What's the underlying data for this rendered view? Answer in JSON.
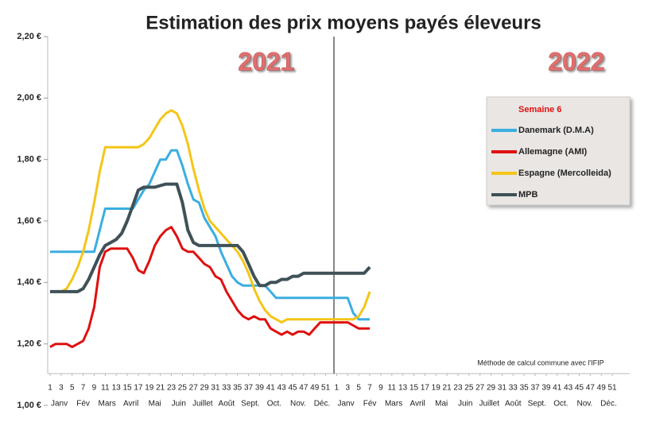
{
  "chart_data": {
    "type": "line",
    "title": "Estimation des prix moyens payés éleveurs",
    "annotations": [
      "2021",
      "2022",
      "Méthode de calcul commune avec l'IFIP"
    ],
    "legend": "upper right",
    "legend_title": "Semaine 6",
    "grid": false,
    "months": [
      "Janv",
      "Fév",
      "Mars",
      "Avril",
      "Mai",
      "Juin",
      "Juillet",
      "Août",
      "Sept.",
      "Oct.",
      "Nov.",
      "Déc."
    ],
    "xlim": [
      1,
      104
    ],
    "ylim": [
      1.0,
      2.2
    ],
    "yticks": [
      {
        "value": 1.0,
        "label": "1,00 €"
      },
      {
        "value": 1.2,
        "label": "1,20 €"
      },
      {
        "value": 1.4,
        "label": "1,40 €"
      },
      {
        "value": 1.6,
        "label": "1,60 €"
      },
      {
        "value": 1.8,
        "label": "1,80 €"
      },
      {
        "value": 2.0,
        "label": "2,00 €"
      },
      {
        "value": 2.2,
        "label": "2,20 €"
      }
    ],
    "xticks": [
      1,
      3,
      5,
      7,
      9,
      11,
      13,
      15,
      17,
      19,
      21,
      23,
      25,
      27,
      29,
      31,
      33,
      35,
      37,
      39,
      41,
      43,
      45,
      47,
      49,
      51,
      {
        "value": 53,
        "label": "1"
      },
      {
        "value": 55,
        "label": "3"
      },
      {
        "value": 57,
        "label": "5"
      },
      {
        "value": 59,
        "label": "7"
      },
      {
        "value": 61,
        "label": "9"
      },
      {
        "value": 63,
        "label": "11"
      },
      {
        "value": 65,
        "label": "13"
      },
      {
        "value": 67,
        "label": "15"
      },
      {
        "value": 69,
        "label": "17"
      },
      {
        "value": 71,
        "label": "19"
      },
      {
        "value": 73,
        "label": "21"
      },
      {
        "value": 75,
        "label": "23"
      },
      {
        "value": 77,
        "label": "25"
      },
      {
        "value": 79,
        "label": "27"
      },
      {
        "value": 81,
        "label": "29"
      },
      {
        "value": 83,
        "label": "31"
      },
      {
        "value": 85,
        "label": "33"
      },
      {
        "value": 87,
        "label": "35"
      },
      {
        "value": 89,
        "label": "37"
      },
      {
        "value": 91,
        "label": "39"
      },
      {
        "value": 93,
        "label": "41"
      },
      {
        "value": 95,
        "label": "43"
      },
      {
        "value": 97,
        "label": "45"
      },
      {
        "value": 99,
        "label": "47"
      },
      {
        "value": 101,
        "label": "49"
      },
      {
        "value": 103,
        "label": "51"
      }
    ],
    "x": [
      1,
      2,
      3,
      4,
      5,
      6,
      7,
      8,
      9,
      10,
      11,
      12,
      13,
      14,
      15,
      16,
      17,
      18,
      19,
      20,
      21,
      22,
      23,
      24,
      25,
      26,
      27,
      28,
      29,
      30,
      31,
      32,
      33,
      34,
      35,
      36,
      37,
      38,
      39,
      40,
      41,
      42,
      43,
      44,
      45,
      46,
      47,
      48,
      49,
      50,
      51,
      52,
      53,
      54,
      55,
      56,
      57,
      58,
      59
    ],
    "series": [
      {
        "name": "Danemark (D.M.A)",
        "color": "#3aaee0",
        "values": [
          1.5,
          1.5,
          1.5,
          1.5,
          1.5,
          1.5,
          1.5,
          1.5,
          1.5,
          1.57,
          1.64,
          1.64,
          1.64,
          1.64,
          1.64,
          1.64,
          1.67,
          1.7,
          1.72,
          1.76,
          1.8,
          1.8,
          1.83,
          1.83,
          1.78,
          1.72,
          1.67,
          1.66,
          1.61,
          1.58,
          1.55,
          1.5,
          1.46,
          1.42,
          1.4,
          1.39,
          1.39,
          1.39,
          1.39,
          1.39,
          1.37,
          1.35,
          1.35,
          1.35,
          1.35,
          1.35,
          1.35,
          1.35,
          1.35,
          1.35,
          1.35,
          1.35,
          1.35,
          1.35,
          1.35,
          1.3,
          1.28,
          1.28,
          1.28
        ]
      },
      {
        "name": "Allemagne (AMI)",
        "color": "#e01010",
        "values": [
          1.19,
          1.2,
          1.2,
          1.2,
          1.19,
          1.2,
          1.21,
          1.25,
          1.32,
          1.45,
          1.5,
          1.51,
          1.51,
          1.51,
          1.51,
          1.48,
          1.44,
          1.43,
          1.47,
          1.52,
          1.55,
          1.57,
          1.58,
          1.55,
          1.51,
          1.5,
          1.5,
          1.48,
          1.46,
          1.45,
          1.42,
          1.41,
          1.37,
          1.34,
          1.31,
          1.29,
          1.28,
          1.29,
          1.28,
          1.28,
          1.25,
          1.24,
          1.23,
          1.24,
          1.23,
          1.24,
          1.24,
          1.23,
          1.25,
          1.27,
          1.27,
          1.27,
          1.27,
          1.27,
          1.27,
          1.26,
          1.25,
          1.25,
          1.25
        ]
      },
      {
        "name": "Espagne (Mercolleida)",
        "color": "#f5c518",
        "values": [
          1.37,
          1.37,
          1.37,
          1.38,
          1.41,
          1.45,
          1.5,
          1.57,
          1.66,
          1.76,
          1.84,
          1.84,
          1.84,
          1.84,
          1.84,
          1.84,
          1.84,
          1.85,
          1.87,
          1.9,
          1.93,
          1.95,
          1.96,
          1.95,
          1.91,
          1.85,
          1.77,
          1.7,
          1.64,
          1.6,
          1.58,
          1.56,
          1.54,
          1.52,
          1.5,
          1.47,
          1.43,
          1.38,
          1.34,
          1.31,
          1.29,
          1.28,
          1.27,
          1.28,
          1.28,
          1.28,
          1.28,
          1.28,
          1.28,
          1.28,
          1.28,
          1.28,
          1.28,
          1.28,
          1.28,
          1.28,
          1.29,
          1.32,
          1.37
        ]
      },
      {
        "name": "MPB",
        "color": "#3f5157",
        "values": [
          1.37,
          1.37,
          1.37,
          1.37,
          1.37,
          1.37,
          1.38,
          1.41,
          1.45,
          1.49,
          1.52,
          1.53,
          1.54,
          1.56,
          1.6,
          1.65,
          1.7,
          1.71,
          1.71,
          1.71,
          1.715,
          1.72,
          1.72,
          1.72,
          1.66,
          1.57,
          1.53,
          1.52,
          1.52,
          1.52,
          1.52,
          1.52,
          1.52,
          1.52,
          1.52,
          1.5,
          1.46,
          1.42,
          1.39,
          1.39,
          1.4,
          1.4,
          1.41,
          1.41,
          1.42,
          1.42,
          1.43,
          1.43,
          1.43,
          1.43,
          1.43,
          1.43,
          1.43,
          1.43,
          1.43,
          1.43,
          1.43,
          1.43,
          1.45
        ]
      }
    ]
  }
}
